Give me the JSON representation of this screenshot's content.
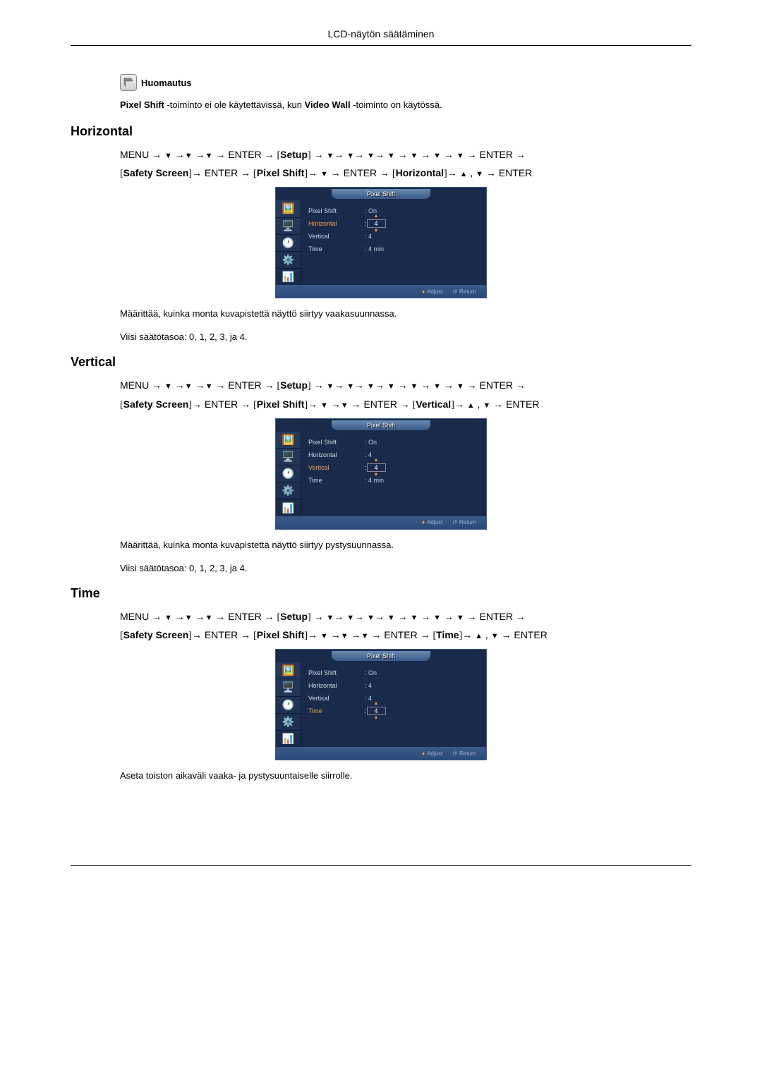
{
  "header": {
    "title": "LCD-näytön säätäminen"
  },
  "note": {
    "label": "Huomautus",
    "text_pre": "Pixel Shift",
    "text_mid": " -toiminto ei ole käytettävissä, kun ",
    "text_bold2": "Video Wall",
    "text_post": " -toiminto on käytössä."
  },
  "sections": [
    {
      "heading": "Horizontal",
      "nav_line1_parts": [
        "MENU → ",
        "▼",
        " →",
        "▼",
        " →",
        "▼",
        " → ENTER → ",
        "[",
        "Setup",
        "]",
        " → ",
        "▼",
        "→ ",
        "▼",
        "→ ",
        "▼",
        "→ ",
        "▼",
        " → ",
        "▼",
        " → ",
        "▼",
        " → ",
        "▼",
        " → ENTER →"
      ],
      "nav_line2_parts": [
        "[",
        "Safety Screen",
        "]",
        "→ ENTER → ",
        "[",
        "Pixel Shift",
        "]",
        "→ ",
        "▼",
        " → ENTER → ",
        "[",
        "Horizontal",
        "]",
        "→ ",
        "▲",
        " , ",
        "▼",
        " → ENTER"
      ],
      "osd": {
        "tab": "Pixel Shift",
        "rows": [
          {
            "label": "Pixel Shift",
            "value": ": On",
            "hl": false,
            "box": false
          },
          {
            "label": "Horizontal",
            "value": "4",
            "hl": true,
            "box": true,
            "prefix": ": "
          },
          {
            "label": "Vertical",
            "value": ": 4",
            "hl": false,
            "box": false
          },
          {
            "label": "Time",
            "value": ": 4 min",
            "hl": false,
            "box": false
          }
        ],
        "footer": {
          "adjust": "Adjust",
          "return": "Return"
        }
      },
      "body1": "Määrittää, kuinka monta kuvapistettä näyttö siirtyy vaakasuunnassa.",
      "body2": "Viisi säätötasoa: 0, 1, 2, 3, ja 4."
    },
    {
      "heading": "Vertical",
      "nav_line1_parts": [
        "MENU → ",
        "▼",
        " →",
        "▼",
        " →",
        "▼",
        " → ENTER → ",
        "[",
        "Setup",
        "]",
        " → ",
        "▼",
        "→ ",
        "▼",
        "→ ",
        "▼",
        "→ ",
        "▼",
        " → ",
        "▼",
        " → ",
        "▼",
        " → ",
        "▼",
        " → ENTER →"
      ],
      "nav_line2_parts": [
        "[",
        "Safety Screen",
        "]",
        "→ ENTER → ",
        "[",
        "Pixel Shift",
        "]",
        "→ ",
        "▼",
        " →",
        "▼",
        " → ENTER → ",
        "[",
        "Vertical",
        "]",
        "→ ",
        "▲",
        " , ",
        "▼",
        " → ENTER"
      ],
      "osd": {
        "tab": "Pixel Shift",
        "rows": [
          {
            "label": "Pixel Shift",
            "value": ": On",
            "hl": false,
            "box": false
          },
          {
            "label": "Horizontal",
            "value": ": 4",
            "hl": false,
            "box": false
          },
          {
            "label": "Vertical",
            "value": "4",
            "hl": true,
            "box": true,
            "prefix": ": "
          },
          {
            "label": "Time",
            "value": ": 4 min",
            "hl": false,
            "box": false
          }
        ],
        "footer": {
          "adjust": "Adjust",
          "return": "Return"
        }
      },
      "body1": "Määrittää, kuinka monta kuvapistettä näyttö siirtyy pystysuunnassa.",
      "body2": "Viisi säätötasoa: 0, 1, 2, 3, ja 4."
    },
    {
      "heading": "Time",
      "nav_line1_parts": [
        "MENU → ",
        "▼",
        " →",
        "▼",
        " →",
        "▼",
        " → ENTER → ",
        "[",
        "Setup",
        "]",
        " → ",
        "▼",
        "→ ",
        "▼",
        "→ ",
        "▼",
        "→ ",
        "▼",
        " → ",
        "▼",
        " → ",
        "▼",
        " → ",
        "▼",
        " → ENTER →"
      ],
      "nav_line2_parts": [
        "[",
        "Safety Screen",
        "]",
        "→ ENTER → ",
        "[",
        "Pixel Shift",
        "]",
        "→ ",
        "▼",
        " →",
        "▼",
        " →",
        "▼",
        " → ENTER → ",
        "[",
        "Time",
        "]",
        "→ ",
        "▲",
        " , ",
        "▼",
        " → ENTER"
      ],
      "osd": {
        "tab": "Pixel Shift",
        "rows": [
          {
            "label": "Pixel Shift",
            "value": ": On",
            "hl": false,
            "box": false
          },
          {
            "label": "Horizontal",
            "value": ": 4",
            "hl": false,
            "box": false
          },
          {
            "label": "Vertical",
            "value": ": 4",
            "hl": false,
            "box": false
          },
          {
            "label": "Time",
            "value": "4",
            "hl": true,
            "box": true,
            "prefix": ": "
          }
        ],
        "footer": {
          "adjust": "Adjust",
          "return": "Return"
        }
      },
      "body1": "Aseta toiston aikaväli vaaka- ja pystysuuntaiselle siirrolle.",
      "body2": ""
    }
  ],
  "osd_icons": [
    "🖼️",
    "🖥️",
    "🕐",
    "⚙️",
    "📊"
  ],
  "colors": {
    "osd_bg": "#1a2a4a",
    "osd_highlight": "#f0a050",
    "osd_text": "#d0d8e8"
  }
}
